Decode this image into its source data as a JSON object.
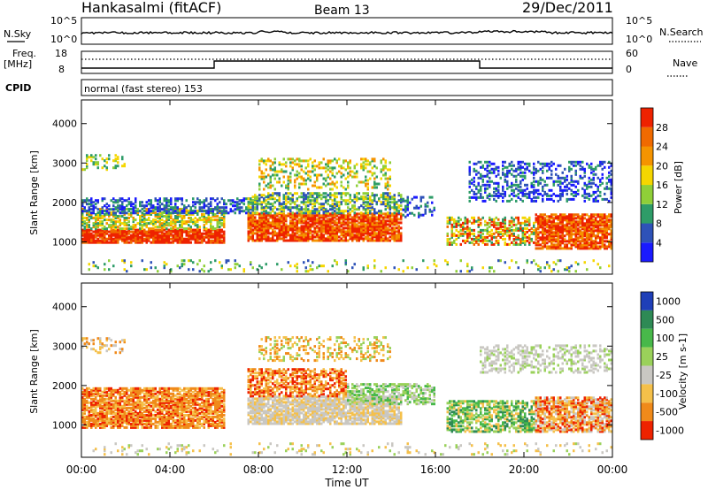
{
  "header": {
    "station": "Hankasalmi (fitACF)",
    "beam": "Beam 13",
    "date": "29/Dec/2011"
  },
  "noise_panel": {
    "left_label": "N.Sky",
    "right_label": "N.Search",
    "left_ticks": [
      "10^5",
      "10^0"
    ],
    "right_ticks": [
      "10^5",
      "10^0"
    ]
  },
  "freq_panel": {
    "left_label_1": "Freq.",
    "left_label_2": "[MHz]",
    "left_ticks": [
      "18",
      "8"
    ],
    "right_ticks": [
      "60",
      "0"
    ],
    "right_label": "Nave"
  },
  "cpid_panel": {
    "label": "CPID",
    "text": "normal (fast stereo) 153"
  },
  "chart_data": [
    {
      "type": "heatmap",
      "name": "power",
      "ylabel": "Slant Range [km]",
      "y_ticks": [
        "1000",
        "2000",
        "3000",
        "4000"
      ],
      "ylim": [
        180,
        4600
      ],
      "colorbar": {
        "label": "Power [dB]",
        "labels": [
          "4",
          "8",
          "12",
          "16",
          "20",
          "24",
          "28"
        ],
        "colors": [
          "#1a1aff",
          "#2e52b8",
          "#2e9c68",
          "#8fcf38",
          "#f5d600",
          "#f59400",
          "#f06a00",
          "#ee2200"
        ]
      }
    },
    {
      "type": "heatmap",
      "name": "velocity",
      "ylabel": "Slant Range [km]",
      "y_ticks": [
        "1000",
        "2000",
        "3000",
        "4000"
      ],
      "ylim": [
        180,
        4600
      ],
      "colorbar": {
        "label": "Velocity [m s-1]",
        "labels": [
          "1000",
          "500",
          "100",
          "25",
          "-25",
          "-100",
          "-500",
          "-1000"
        ],
        "colors": [
          "#1f3fb8",
          "#2e8a55",
          "#48b84a",
          "#9ad15a",
          "#c9c7c2",
          "#f5c04a",
          "#f08a1a",
          "#ee2200"
        ]
      }
    }
  ],
  "x_axis": {
    "ticks": [
      "00:00",
      "04:00",
      "08:00",
      "12:00",
      "16:00",
      "20:00",
      "00:00"
    ],
    "label": "Time UT"
  }
}
